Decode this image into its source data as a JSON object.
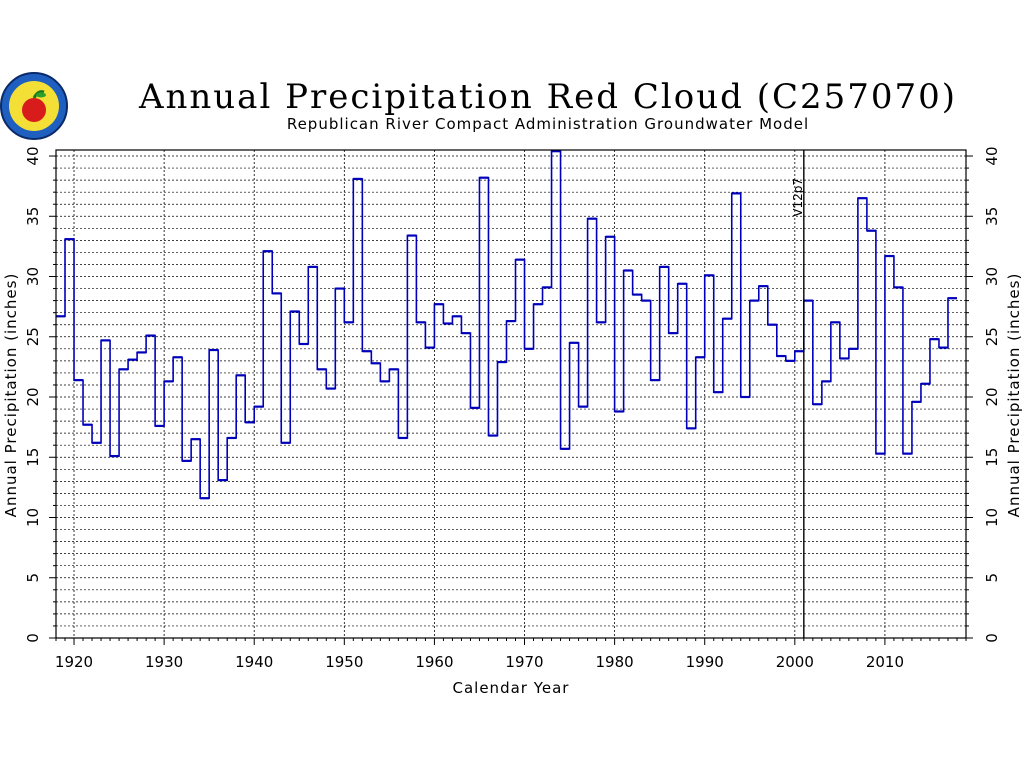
{
  "chart_data": {
    "type": "line",
    "style": "step",
    "title": "Annual Precipitation Red Cloud (C257070)",
    "subtitle": "Republican River Compact Administration Groundwater Model",
    "xlabel": "Calendar Year",
    "ylabel": "Annual Precipitation (inches)",
    "xlim": [
      1918,
      2019
    ],
    "ylim": [
      0,
      40.5
    ],
    "x_ticks": [
      1920,
      1930,
      1940,
      1950,
      1960,
      1970,
      1980,
      1990,
      2000,
      2010
    ],
    "y_ticks": [
      0,
      5,
      10,
      15,
      20,
      25,
      30,
      35,
      40
    ],
    "grid": true,
    "line_color": "#0000bb",
    "annotation": {
      "label": "V12p7",
      "x": 2001
    },
    "x": [
      1918,
      1919,
      1920,
      1921,
      1922,
      1923,
      1924,
      1925,
      1926,
      1927,
      1928,
      1929,
      1930,
      1931,
      1932,
      1933,
      1934,
      1935,
      1936,
      1937,
      1938,
      1939,
      1940,
      1941,
      1942,
      1943,
      1944,
      1945,
      1946,
      1947,
      1948,
      1949,
      1950,
      1951,
      1952,
      1953,
      1954,
      1955,
      1956,
      1957,
      1958,
      1959,
      1960,
      1961,
      1962,
      1963,
      1964,
      1965,
      1966,
      1967,
      1968,
      1969,
      1970,
      1971,
      1972,
      1973,
      1974,
      1975,
      1976,
      1977,
      1978,
      1979,
      1980,
      1981,
      1982,
      1983,
      1984,
      1985,
      1986,
      1987,
      1988,
      1989,
      1990,
      1991,
      1992,
      1993,
      1994,
      1995,
      1996,
      1997,
      1998,
      1999,
      2000,
      2001,
      2002,
      2003,
      2004,
      2005,
      2006,
      2007,
      2008,
      2009,
      2010,
      2011,
      2012,
      2013,
      2014,
      2015,
      2016,
      2017
    ],
    "y": [
      26.7,
      33.1,
      21.4,
      17.7,
      16.2,
      24.7,
      15.1,
      22.3,
      23.1,
      23.7,
      25.1,
      17.6,
      21.3,
      23.3,
      14.7,
      16.5,
      11.6,
      23.9,
      13.1,
      16.6,
      21.8,
      17.9,
      19.2,
      32.1,
      28.6,
      16.2,
      27.1,
      24.4,
      30.8,
      22.3,
      20.7,
      29.0,
      26.2,
      38.1,
      23.8,
      22.8,
      21.3,
      22.3,
      16.6,
      33.4,
      26.2,
      24.1,
      27.7,
      26.1,
      26.7,
      25.3,
      19.1,
      38.2,
      16.8,
      22.9,
      26.3,
      31.4,
      24.0,
      27.7,
      29.1,
      40.4,
      15.7,
      24.5,
      19.2,
      34.8,
      26.2,
      33.3,
      18.8,
      30.5,
      28.5,
      28.0,
      21.4,
      30.8,
      25.3,
      29.4,
      17.4,
      23.3,
      30.1,
      20.4,
      26.5,
      36.9,
      20.0,
      28.0,
      29.2,
      26.0,
      23.4,
      23.0,
      23.8,
      28.0,
      19.4,
      21.3,
      26.2,
      23.2,
      24.0,
      36.5,
      33.8,
      15.3,
      31.7,
      29.1,
      15.3,
      19.6,
      21.1,
      24.8,
      24.1,
      28.2
    ]
  }
}
